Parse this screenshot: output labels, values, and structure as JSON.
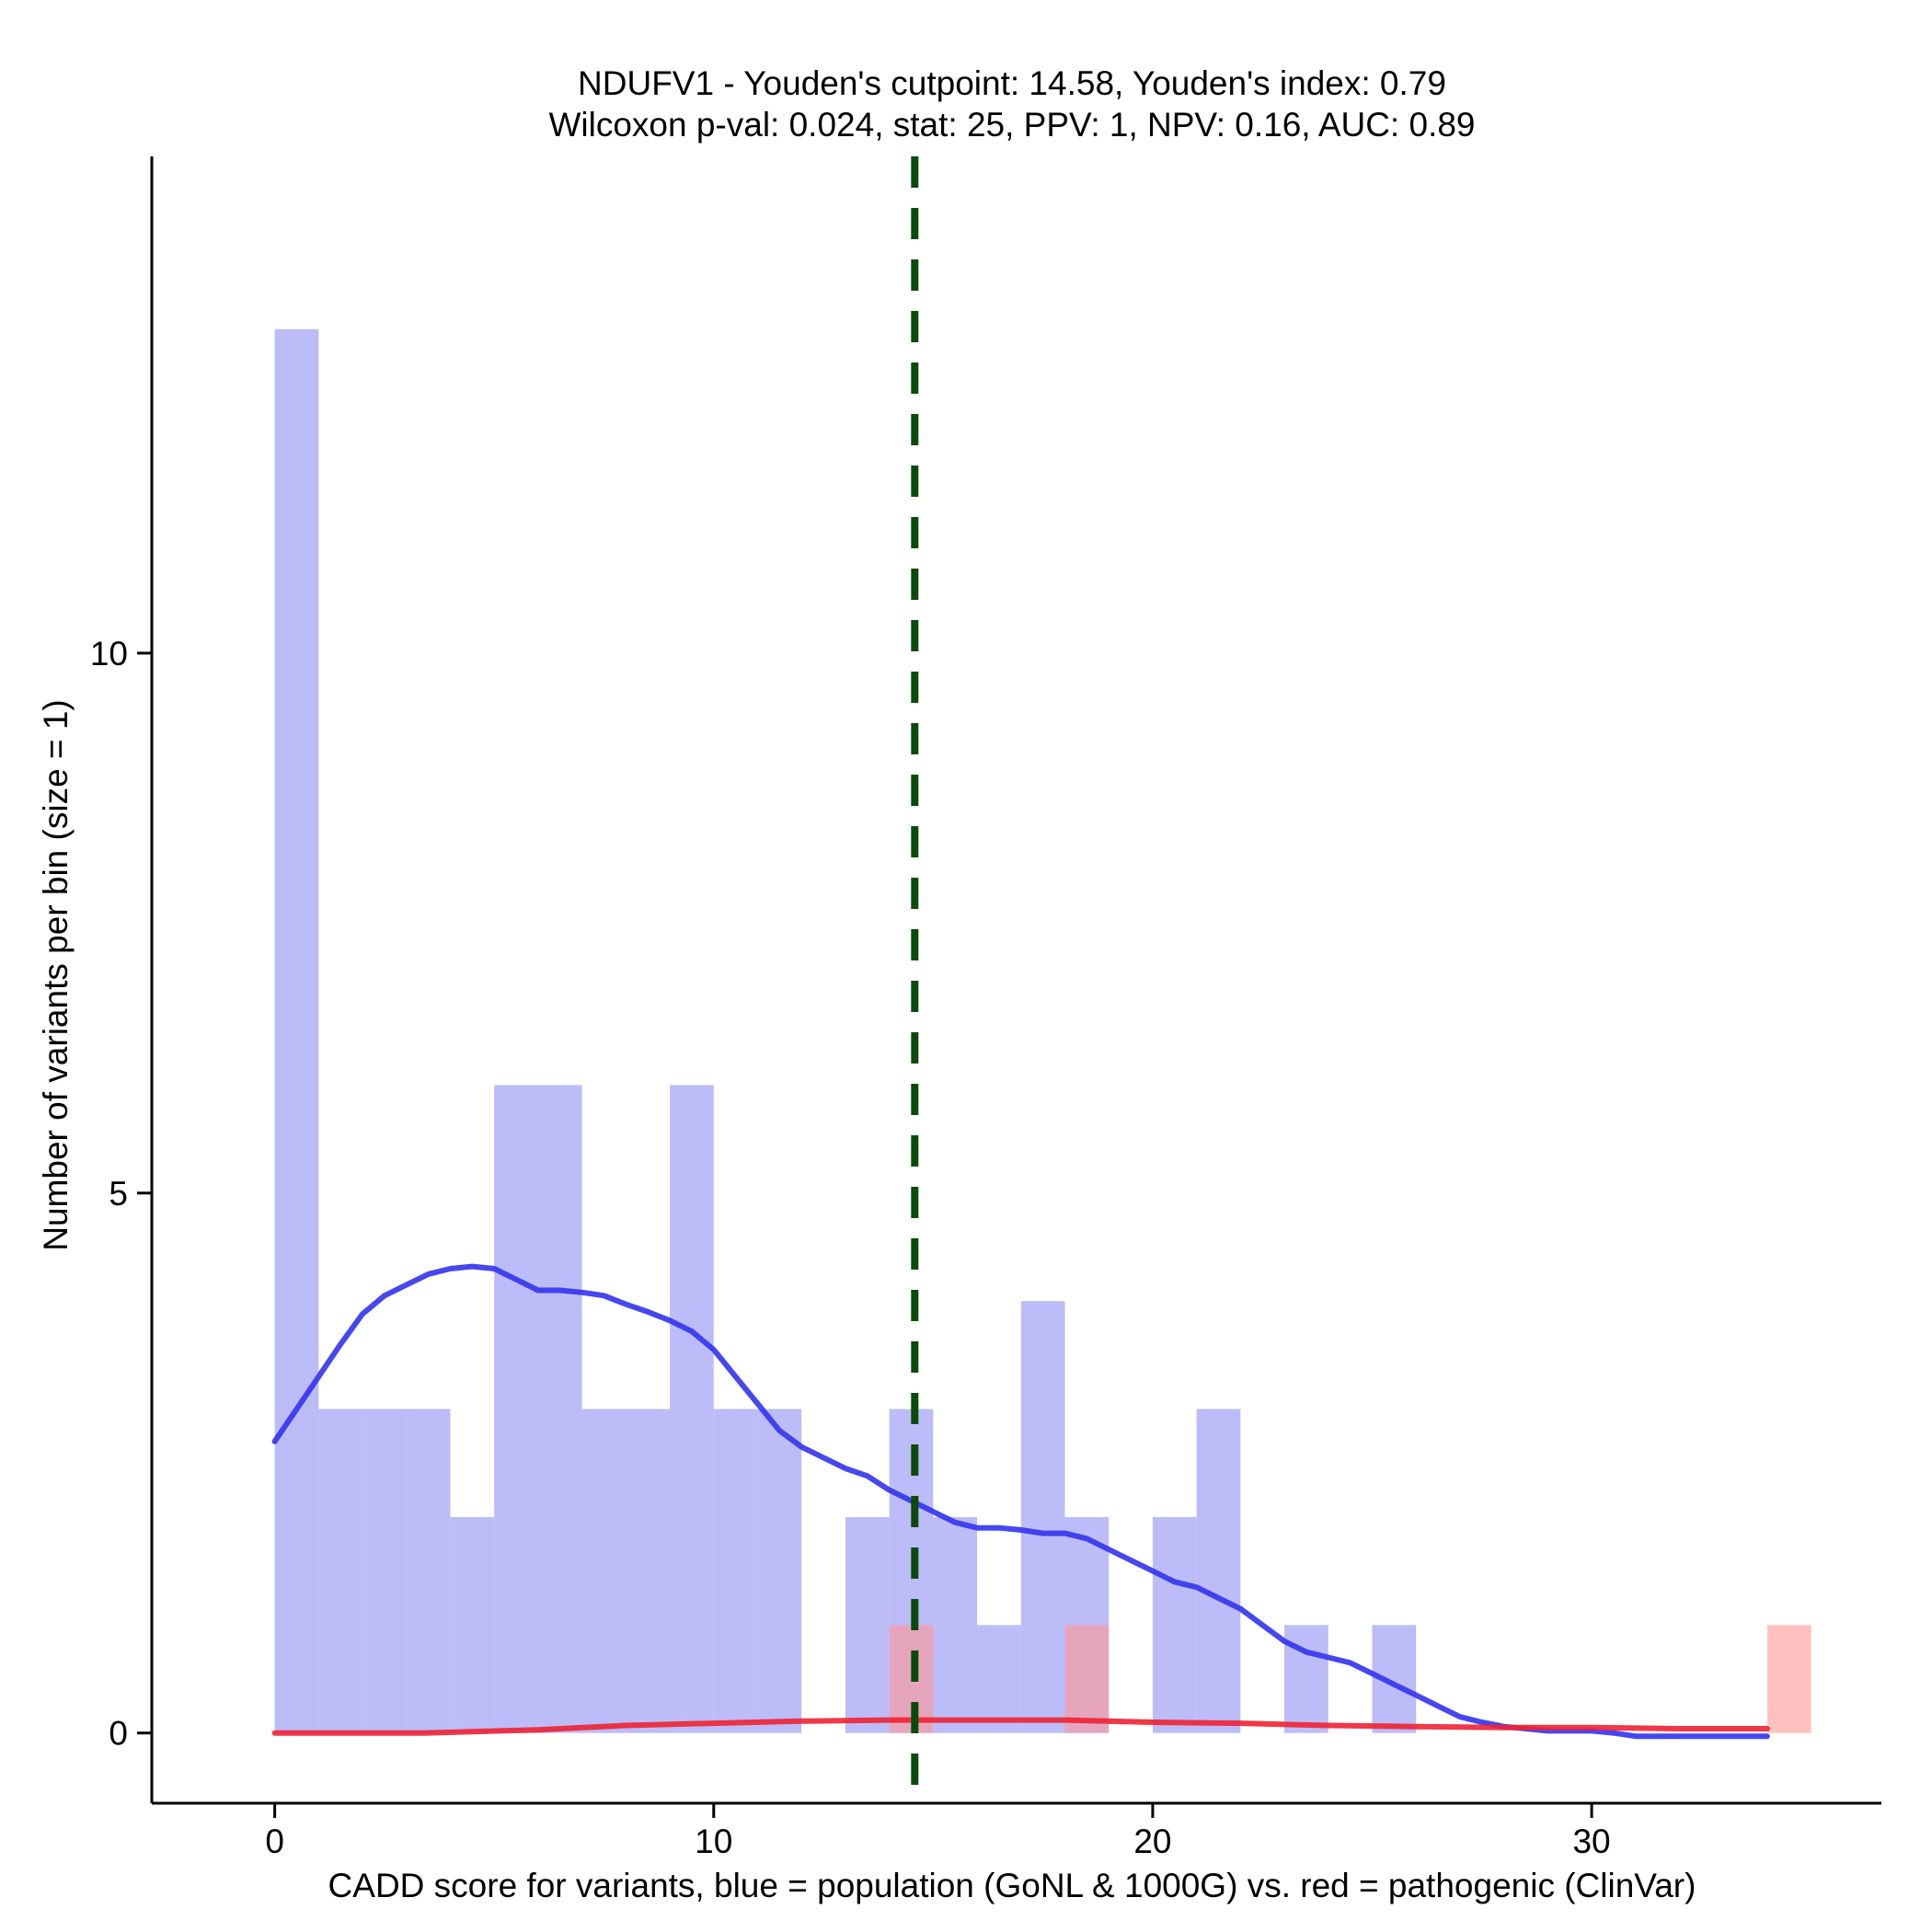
{
  "chart_data": {
    "type": "bar",
    "title_line1": "NDUFV1 - Youden's cutpoint: 14.58, Youden's index: 0.79",
    "title_line2": "Wilcoxon p-val: 0.024, stat: 25, PPV: 1, NPV: 0.16, AUC: 0.89",
    "xlabel": "CADD score for variants, blue = population (GoNL & 1000G) vs. red = pathogenic (ClinVar)",
    "ylabel": "Number of variants per bin (size = 1)",
    "xlim": [
      -2.8,
      36.6
    ],
    "ylim": [
      -0.65,
      14.6
    ],
    "x_ticks": [
      0,
      10,
      20,
      30
    ],
    "y_ticks": [
      0,
      5,
      10
    ],
    "bin_size": 1,
    "cutpoint": 14.58,
    "colors": {
      "population_bar": "#bcbcf8",
      "pathogenic_bar": "#ff9999",
      "population_density": "#3333ee",
      "pathogenic_density": "#ee2233",
      "cutpoint_line": "#0a4a0a"
    },
    "series": [
      {
        "name": "population (GoNL & 1000G)",
        "bins": [
          {
            "x": 0,
            "count": 13
          },
          {
            "x": 1,
            "count": 3
          },
          {
            "x": 2,
            "count": 3
          },
          {
            "x": 3,
            "count": 3
          },
          {
            "x": 4,
            "count": 2
          },
          {
            "x": 5,
            "count": 6
          },
          {
            "x": 6,
            "count": 6
          },
          {
            "x": 7,
            "count": 3
          },
          {
            "x": 8,
            "count": 3
          },
          {
            "x": 9,
            "count": 6
          },
          {
            "x": 10,
            "count": 3
          },
          {
            "x": 11,
            "count": 3
          },
          {
            "x": 13,
            "count": 2
          },
          {
            "x": 14,
            "count": 3
          },
          {
            "x": 15,
            "count": 2
          },
          {
            "x": 16,
            "count": 1
          },
          {
            "x": 17,
            "count": 4
          },
          {
            "x": 18,
            "count": 2
          },
          {
            "x": 20,
            "count": 2
          },
          {
            "x": 21,
            "count": 3
          },
          {
            "x": 23,
            "count": 1
          },
          {
            "x": 25,
            "count": 1
          }
        ]
      },
      {
        "name": "pathogenic (ClinVar)",
        "bins": [
          {
            "x": 14,
            "count": 1
          },
          {
            "x": 18,
            "count": 1
          },
          {
            "x": 34,
            "count": 1
          }
        ]
      }
    ],
    "density": [
      {
        "name": "population density",
        "points": [
          [
            0,
            2.7
          ],
          [
            0.5,
            3.0
          ],
          [
            1,
            3.3
          ],
          [
            1.5,
            3.6
          ],
          [
            2,
            3.88
          ],
          [
            2.5,
            4.05
          ],
          [
            3,
            4.15
          ],
          [
            3.5,
            4.25
          ],
          [
            4,
            4.3
          ],
          [
            4.5,
            4.32
          ],
          [
            5,
            4.3
          ],
          [
            5.5,
            4.2
          ],
          [
            6,
            4.1
          ],
          [
            6.5,
            4.1
          ],
          [
            7,
            4.08
          ],
          [
            7.5,
            4.05
          ],
          [
            8,
            3.97
          ],
          [
            8.5,
            3.9
          ],
          [
            9,
            3.82
          ],
          [
            9.5,
            3.72
          ],
          [
            10,
            3.55
          ],
          [
            10.5,
            3.3
          ],
          [
            11,
            3.05
          ],
          [
            11.5,
            2.8
          ],
          [
            12,
            2.65
          ],
          [
            12.5,
            2.55
          ],
          [
            13,
            2.45
          ],
          [
            13.5,
            2.38
          ],
          [
            14,
            2.25
          ],
          [
            14.5,
            2.15
          ],
          [
            15,
            2.05
          ],
          [
            15.5,
            1.95
          ],
          [
            16,
            1.9
          ],
          [
            16.5,
            1.9
          ],
          [
            17,
            1.88
          ],
          [
            17.5,
            1.85
          ],
          [
            18,
            1.85
          ],
          [
            18.5,
            1.8
          ],
          [
            19,
            1.7
          ],
          [
            19.5,
            1.6
          ],
          [
            20,
            1.5
          ],
          [
            20.5,
            1.4
          ],
          [
            21,
            1.35
          ],
          [
            21.5,
            1.25
          ],
          [
            22,
            1.15
          ],
          [
            22.5,
            1.0
          ],
          [
            23,
            0.85
          ],
          [
            23.5,
            0.75
          ],
          [
            24,
            0.7
          ],
          [
            24.5,
            0.65
          ],
          [
            25,
            0.55
          ],
          [
            25.5,
            0.45
          ],
          [
            26,
            0.35
          ],
          [
            26.5,
            0.25
          ],
          [
            27,
            0.15
          ],
          [
            27.5,
            0.1
          ],
          [
            28,
            0.06
          ],
          [
            28.5,
            0.04
          ],
          [
            29,
            0.02
          ],
          [
            30,
            0.02
          ],
          [
            30.5,
            0.0
          ],
          [
            31,
            -0.03
          ],
          [
            32,
            -0.03
          ],
          [
            33,
            -0.03
          ],
          [
            34,
            -0.03
          ]
        ]
      },
      {
        "name": "pathogenic density",
        "points": [
          [
            0,
            0.0
          ],
          [
            3.4,
            0.0
          ],
          [
            6,
            0.03
          ],
          [
            8,
            0.07
          ],
          [
            10,
            0.09
          ],
          [
            12,
            0.11
          ],
          [
            14,
            0.12
          ],
          [
            16,
            0.12
          ],
          [
            18,
            0.12
          ],
          [
            20,
            0.1
          ],
          [
            22,
            0.09
          ],
          [
            24,
            0.07
          ],
          [
            26,
            0.06
          ],
          [
            28,
            0.05
          ],
          [
            30,
            0.05
          ],
          [
            32,
            0.04
          ],
          [
            34,
            0.04
          ]
        ]
      }
    ]
  }
}
